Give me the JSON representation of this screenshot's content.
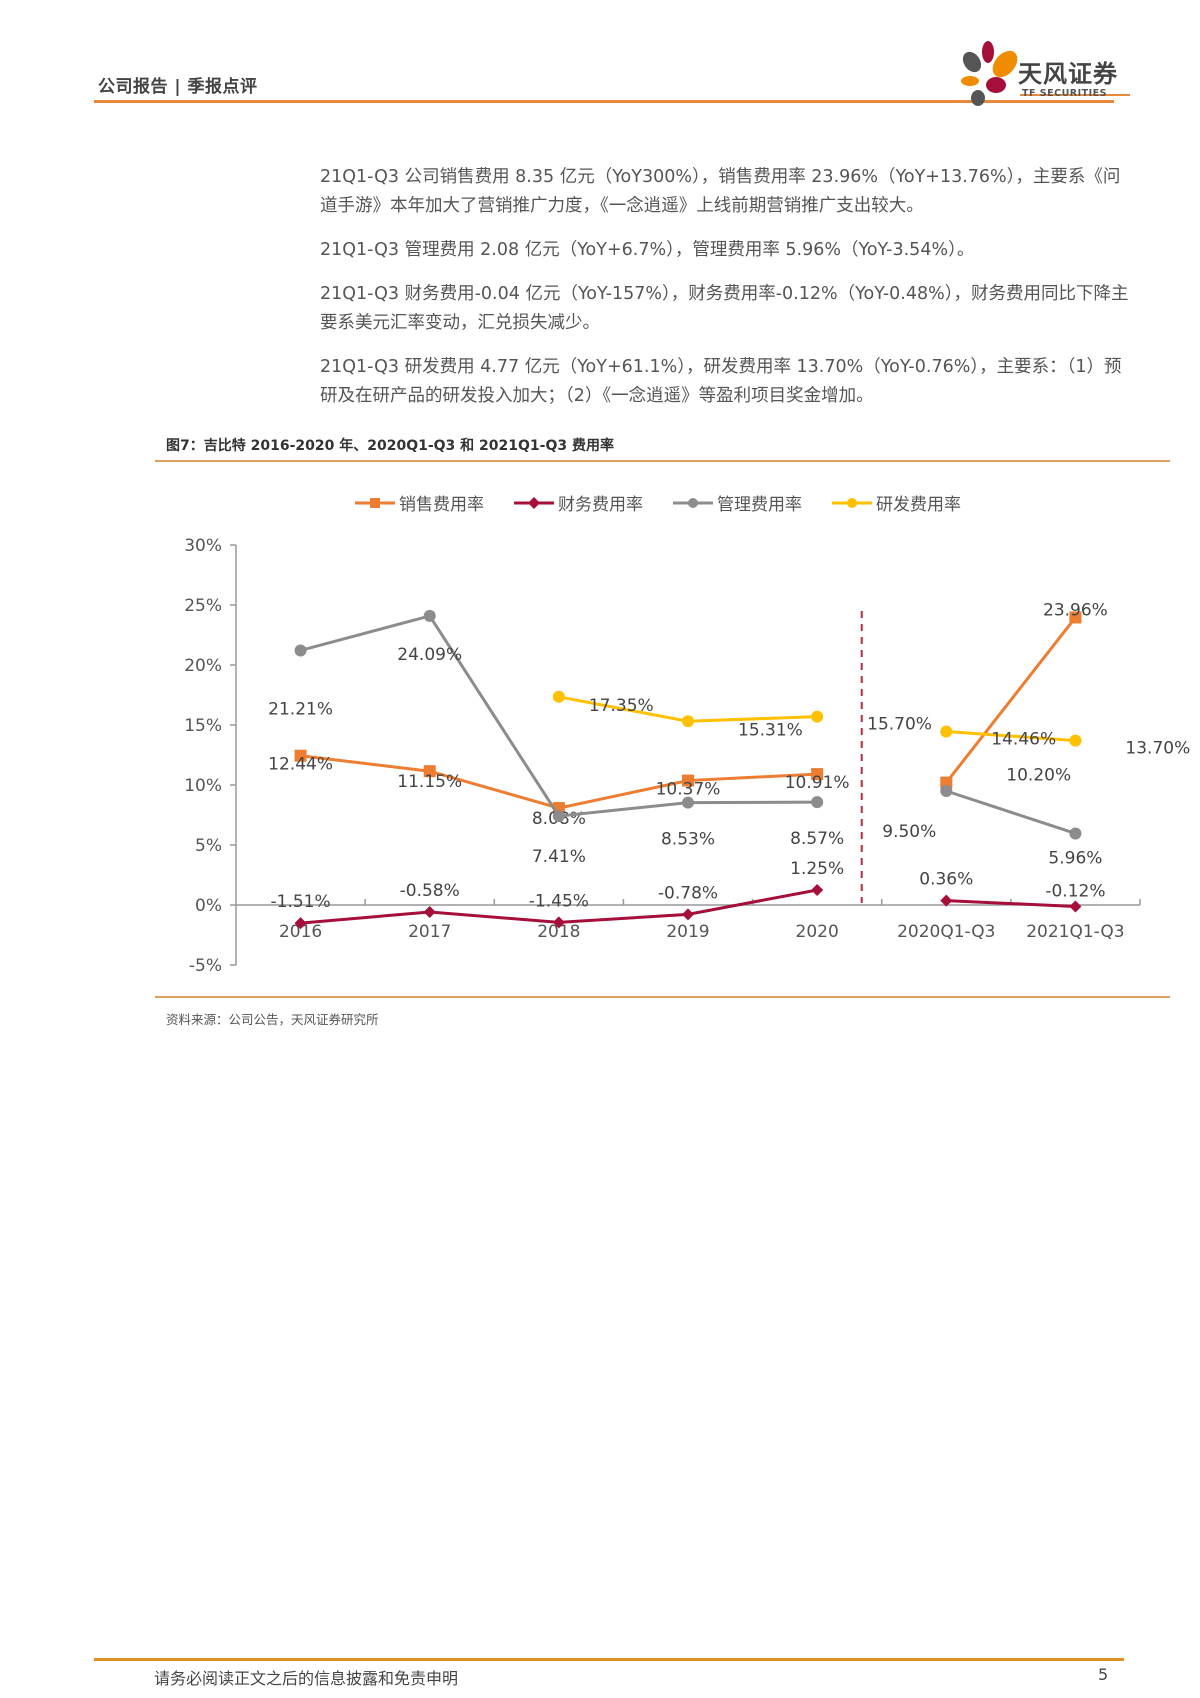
{
  "header": {
    "section_label": "公司报告 | 季报点评",
    "logo_cn": "天风证券",
    "logo_en": "TF SECURITIES"
  },
  "paragraphs": [
    "21Q1-Q3 公司销售费用 8.35 亿元（YoY300%），销售费用率 23.96%（YoY+13.76%），主要系《问道手游》本年加大了营销推广力度，《一念逍遥》上线前期营销推广支出较大。",
    "21Q1-Q3 管理费用 2.08 亿元（YoY+6.7%），管理费用率 5.96%（YoY-3.54%）。",
    "21Q1-Q3 财务费用-0.04 亿元（YoY-157%），财务费用率-0.12%（YoY-0.48%），财务费用同比下降主要系美元汇率变动，汇兑损失减少。",
    "21Q1-Q3 研发费用 4.77 亿元（YoY+61.1%），研发费用率 13.70%（YoY-0.76%），主要系：（1）预研及在研产品的研发投入加大；（2）《一念逍遥》等盈利项目奖金增加。"
  ],
  "figure": {
    "title": "图7：吉比特 2016-2020 年、2020Q1-Q3 和 2021Q1-Q3 费用率",
    "source": "资料来源：公司公告，天风证券研究所"
  },
  "chart_data": {
    "type": "line",
    "title": "吉比特 2016-2020 年、2020Q1-Q3 和 2021Q1-Q3 费用率",
    "categories": [
      "2016",
      "2017",
      "2018",
      "2019",
      "2020",
      "2020Q1-Q3",
      "2021Q1-Q3"
    ],
    "yticks": [
      "30%",
      "25%",
      "20%",
      "15%",
      "10%",
      "5%",
      "0%",
      "-5%"
    ],
    "ylim": [
      -5,
      30
    ],
    "xlabel": "",
    "ylabel": "",
    "grid": false,
    "legend_position": "top",
    "divider_between": [
      "2020",
      "2020Q1-Q3"
    ],
    "series": [
      {
        "name": "销售费用率",
        "color": "#ed7d31",
        "marker": "square",
        "values": [
          12.44,
          11.15,
          8.08,
          10.37,
          10.91,
          10.2,
          23.96
        ],
        "labels": [
          "12.44%",
          "11.15%",
          "8.08%",
          "10.37%",
          "10.91%",
          "10.20%",
          "23.96%"
        ]
      },
      {
        "name": "财务费用率",
        "color": "#a50f3a",
        "marker": "diamond",
        "values": [
          -1.51,
          -0.58,
          -1.45,
          -0.78,
          1.25,
          0.36,
          -0.12
        ],
        "labels": [
          "-1.51%",
          "-0.58%",
          "-1.45%",
          "-0.78%",
          "1.25%",
          "0.36%",
          "-0.12%"
        ]
      },
      {
        "name": "管理费用率",
        "color": "#8c8c8c",
        "marker": "circle",
        "values": [
          21.21,
          24.09,
          7.41,
          8.53,
          8.57,
          9.5,
          5.96
        ],
        "labels": [
          "21.21%",
          "24.09%",
          "7.41%",
          "8.53%",
          "8.57%",
          "9.50%",
          "5.96%"
        ]
      },
      {
        "name": "研发费用率",
        "color": "#ffc000",
        "marker": "circle",
        "values": [
          null,
          null,
          17.35,
          15.31,
          15.7,
          14.46,
          13.7
        ],
        "labels": [
          null,
          null,
          "17.35%",
          "15.31%",
          "15.70%",
          "14.46%",
          "13.70%"
        ]
      }
    ]
  },
  "footer": {
    "disclaimer": "请务必阅读正文之后的信息披露和免责申明",
    "page": "5"
  }
}
